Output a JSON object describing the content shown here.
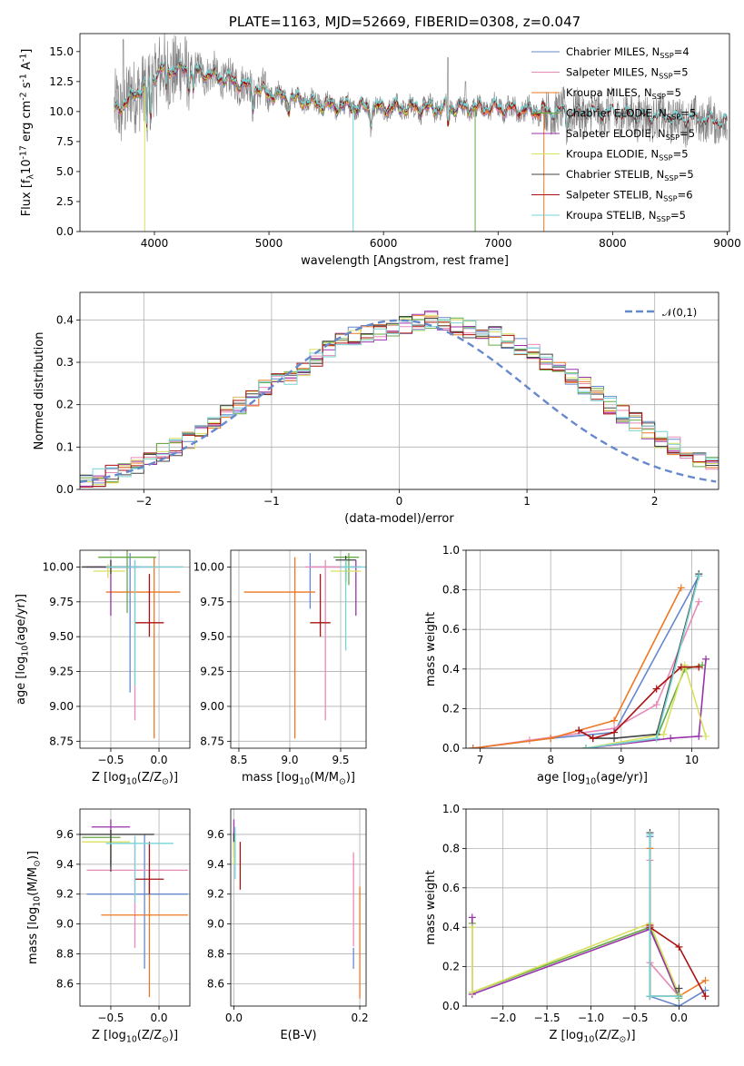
{
  "chart_data": [
    {
      "type": "line",
      "title": "PLATE=1163, MJD=52669, FIBERID=0308, z=0.047",
      "xlabel": "wavelength [Angstrom, rest frame]",
      "ylabel": "Flux [f$_\\lambda$10$^{-17}$ erg cm$^{-2}$ s$^{-1}$ A$^{-1}$]",
      "xlim": [
        3350,
        9020
      ],
      "ylim": [
        0,
        16.5
      ],
      "xticks": [
        "4000",
        "5000",
        "6000",
        "7000",
        "8000",
        "9000"
      ],
      "yticks": [
        "0.0",
        "2.5",
        "5.0",
        "7.5",
        "10.0",
        "12.5",
        "15.0"
      ],
      "grid": false,
      "legend": "top-right",
      "series": [
        {
          "name": "Chabrier MILES, N$_{SSP}$=4",
          "color": "#6688cc",
          "wl_range": [
            3650,
            7400
          ]
        },
        {
          "name": "Salpeter MILES, N$_{SSP}$=5",
          "color": "#e88ab8",
          "wl_range": [
            3650,
            7400
          ]
        },
        {
          "name": "Kroupa MILES, N$_{SSP}$=5",
          "color": "#ee7722",
          "wl_range": [
            3650,
            7400
          ]
        },
        {
          "name": "Chabrier ELODIE, N$_{SSP}$=5",
          "color": "#66aa44",
          "wl_range": [
            3650,
            6800
          ]
        },
        {
          "name": "Salpeter ELODIE, N$_{SSP}$=5",
          "color": "#9933aa",
          "wl_range": [
            3650,
            6800
          ]
        },
        {
          "name": "Kroupa ELODIE, N$_{SSP}$=5",
          "color": "#d8e060",
          "wl_range": [
            3650,
            6800
          ]
        },
        {
          "name": "Chabrier STELIB, N$_{SSP}$=5",
          "color": "#444444",
          "wl_range": [
            3650,
            9000
          ]
        },
        {
          "name": "Salpeter STELIB, N$_{SSP}$=6",
          "color": "#aa1111",
          "wl_range": [
            3650,
            9000
          ]
        },
        {
          "name": "Kroupa STELIB, N$_{SSP}$=5",
          "color": "#77d4d4",
          "wl_range": [
            3650,
            9000
          ]
        }
      ],
      "data_color": "#808080",
      "continuum": {
        "wavelength": [
          3650,
          3900,
          4050,
          4300,
          4600,
          5000,
          5500,
          6000,
          6500,
          7000,
          7500,
          8000,
          8500,
          9000
        ],
        "flux": [
          10.0,
          12.0,
          13.5,
          13.5,
          12.8,
          11.5,
          10.5,
          10.3,
          10.3,
          10.3,
          9.9,
          9.8,
          9.4,
          9.1
        ]
      }
    },
    {
      "type": "bar",
      "xlabel": "(data-model)/error",
      "ylabel": "Normed distribution",
      "xlim": [
        -2.5,
        2.5
      ],
      "ylim": [
        0,
        0.465
      ],
      "xticks": [
        "−2",
        "−1",
        "0",
        "1",
        "2"
      ],
      "yticks": [
        "0.0",
        "0.1",
        "0.2",
        "0.3",
        "0.4"
      ],
      "grid": true,
      "legend": "top-right",
      "reference": {
        "name": "$\\mathcal{N}(0,1)$",
        "color": "#6688cc",
        "mean": 0,
        "sigma": 1
      },
      "bin_width": 0.1,
      "envelope": [
        0.026,
        0.029,
        0.037,
        0.05,
        0.06,
        0.072,
        0.088,
        0.1,
        0.118,
        0.14,
        0.165,
        0.185,
        0.2,
        0.215,
        0.236,
        0.252,
        0.27,
        0.29,
        0.312,
        0.33,
        0.35,
        0.362,
        0.37,
        0.372,
        0.375,
        0.39,
        0.395,
        0.4,
        0.39,
        0.385,
        0.38,
        0.37,
        0.362,
        0.352,
        0.335,
        0.32,
        0.302,
        0.285,
        0.265,
        0.245,
        0.222,
        0.2,
        0.178,
        0.16,
        0.14,
        0.12,
        0.104,
        0.09,
        0.074,
        0.06
      ]
    },
    {
      "type": "scatter",
      "xlabel": "Z [log$_{10}$($Z/Z_\\odot$)]",
      "ylabel": "age  [log$_{10}$($age/yr$)]",
      "xlim": [
        -0.82,
        0.32
      ],
      "ylim": [
        8.7,
        10.12
      ],
      "xticks": [
        "−0.5",
        "0.0"
      ],
      "yticks": [
        "8.75",
        "9.00",
        "9.25",
        "9.50",
        "9.75",
        "10.00"
      ],
      "grid": true,
      "points": [
        {
          "color": "#6688cc",
          "x": -0.3,
          "y": 10.0,
          "xerr": [
            0.5,
            0.28
          ],
          "yerr": [
            0.9,
            0.1
          ]
        },
        {
          "color": "#e88ab8",
          "x": -0.25,
          "y": 10.0,
          "xerr": [
            0.45,
            0.5
          ],
          "yerr": [
            1.1,
            0.05
          ]
        },
        {
          "color": "#ee7722",
          "x": -0.05,
          "y": 9.82,
          "xerr": [
            0.5,
            0.27
          ],
          "yerr": [
            1.05,
            0.25
          ]
        },
        {
          "color": "#66aa44",
          "x": -0.33,
          "y": 10.07,
          "xerr": [
            0.3,
            0.3
          ],
          "yerr": [
            0.4,
            0.05
          ]
        },
        {
          "color": "#9933aa",
          "x": -0.5,
          "y": 10.0,
          "xerr": [
            0.25,
            0.3
          ],
          "yerr": [
            0.35,
            0.05
          ]
        },
        {
          "color": "#d8e060",
          "x": -0.53,
          "y": 9.97,
          "xerr": [
            0.15,
            0.18
          ],
          "yerr": [
            0.05,
            0.05
          ]
        },
        {
          "color": "#444444",
          "x": -0.5,
          "y": 10.0,
          "xerr": [
            0.3,
            0.2
          ],
          "yerr": [
            0.05,
            0.05
          ]
        },
        {
          "color": "#aa1111",
          "x": -0.1,
          "y": 9.6,
          "xerr": [
            0.15,
            0.15
          ],
          "yerr": [
            0.1,
            0.35
          ]
        },
        {
          "color": "#77d4d4",
          "x": -0.25,
          "y": 10.0,
          "xerr": [
            0.3,
            0.5
          ],
          "yerr": [
            0.85,
            0.05
          ]
        }
      ]
    },
    {
      "type": "scatter",
      "xlabel": "mass [log$_{10}$($M/M_\\odot$)]",
      "xlim": [
        8.42,
        9.75
      ],
      "ylim": [
        8.7,
        10.12
      ],
      "xticks": [
        "8.5",
        "9.0",
        "9.5"
      ],
      "yticks": [
        "8.75",
        "9.00",
        "9.25",
        "9.50",
        "9.75",
        "10.00"
      ],
      "grid": true,
      "points": [
        {
          "color": "#6688cc",
          "x": 9.2,
          "y": 10.0,
          "xerr": [
            0.0,
            0.45
          ],
          "yerr": [
            0.3,
            0.1
          ]
        },
        {
          "color": "#e88ab8",
          "x": 9.35,
          "y": 10.0,
          "xerr": [
            0.2,
            0.2
          ],
          "yerr": [
            1.1,
            0.05
          ]
        },
        {
          "color": "#ee7722",
          "x": 9.05,
          "y": 9.82,
          "xerr": [
            0.5,
            0.2
          ],
          "yerr": [
            1.05,
            0.25
          ]
        },
        {
          "color": "#66aa44",
          "x": 9.58,
          "y": 10.07,
          "xerr": [
            0.15,
            0.1
          ],
          "yerr": [
            0.2,
            0.03
          ]
        },
        {
          "color": "#9933aa",
          "x": 9.65,
          "y": 10.0,
          "xerr": [
            0.05,
            0.05
          ],
          "yerr": [
            0.35,
            0.05
          ]
        },
        {
          "color": "#d8e060",
          "x": 9.55,
          "y": 9.97,
          "xerr": [
            0.15,
            0.15
          ],
          "yerr": [
            0.1,
            0.05
          ]
        },
        {
          "color": "#444444",
          "x": 9.55,
          "y": 10.05,
          "xerr": [
            0.1,
            0.1
          ],
          "yerr": [
            0.15,
            0.03
          ]
        },
        {
          "color": "#aa1111",
          "x": 9.3,
          "y": 9.6,
          "xerr": [
            0.1,
            0.1
          ],
          "yerr": [
            0.1,
            0.35
          ]
        },
        {
          "color": "#77d4d4",
          "x": 9.55,
          "y": 10.0,
          "xerr": [
            0.05,
            0.2
          ],
          "yerr": [
            0.6,
            0.05
          ]
        }
      ]
    },
    {
      "type": "line",
      "xlabel": "age  [log$_{10}$($age/yr$)]",
      "ylabel": "mass weight",
      "xlim": [
        6.8,
        10.38
      ],
      "ylim": [
        0,
        1.0
      ],
      "xticks": [
        "7",
        "8",
        "9",
        "10"
      ],
      "yticks": [
        "0.0",
        "0.2",
        "0.4",
        "0.6",
        "0.8",
        "1.0"
      ],
      "grid": true,
      "series": [
        {
          "color": "#6688cc",
          "x": [
            6.9,
            8.0,
            8.9,
            10.1
          ],
          "y": [
            0.0,
            0.05,
            0.08,
            0.87
          ]
        },
        {
          "color": "#e88ab8",
          "x": [
            6.9,
            7.7,
            8.9,
            9.5,
            10.1
          ],
          "y": [
            0.0,
            0.04,
            0.1,
            0.22,
            0.74
          ]
        },
        {
          "color": "#ee7722",
          "x": [
            6.9,
            8.0,
            8.9,
            9.85
          ],
          "y": [
            0.0,
            0.05,
            0.14,
            0.81
          ]
        },
        {
          "color": "#66aa44",
          "x": [
            8.5,
            9.5,
            9.9,
            10.15
          ],
          "y": [
            0.0,
            0.05,
            0.4,
            0.42
          ]
        },
        {
          "color": "#9933aa",
          "x": [
            8.5,
            9.7,
            10.1,
            10.2
          ],
          "y": [
            0.0,
            0.05,
            0.06,
            0.45
          ]
        },
        {
          "color": "#d8e060",
          "x": [
            8.5,
            9.6,
            9.9,
            10.2
          ],
          "y": [
            0.0,
            0.07,
            0.42,
            0.06
          ]
        },
        {
          "color": "#444444",
          "x": [
            8.4,
            8.6,
            8.9,
            9.5,
            10.1
          ],
          "y": [
            0.09,
            0.05,
            0.05,
            0.07,
            0.88
          ]
        },
        {
          "color": "#aa1111",
          "x": [
            8.4,
            8.6,
            8.9,
            9.5,
            9.85,
            10.1
          ],
          "y": [
            0.09,
            0.05,
            0.08,
            0.3,
            0.41,
            0.41
          ]
        },
        {
          "color": "#77d4d4",
          "x": [
            8.5,
            9.5,
            10.1
          ],
          "y": [
            0.0,
            0.05,
            0.87
          ]
        }
      ]
    },
    {
      "type": "scatter",
      "xlabel": "Z [log$_{10}$($Z/Z_\\odot$)]",
      "ylabel": "mass [log$_{10}$($M/M_\\odot$)]",
      "xlim": [
        -0.82,
        0.32
      ],
      "ylim": [
        8.45,
        9.77
      ],
      "xticks": [
        "−0.5",
        "0.0"
      ],
      "yticks": [
        "8.6",
        "8.8",
        "9.0",
        "9.2",
        "9.4",
        "9.6"
      ],
      "grid": true,
      "points": [
        {
          "color": "#6688cc",
          "x": -0.15,
          "y": 9.2,
          "xerr": [
            0.6,
            0.45
          ],
          "yerr": [
            0.5,
            0.4
          ]
        },
        {
          "color": "#e88ab8",
          "x": -0.25,
          "y": 9.36,
          "xerr": [
            0.5,
            0.55
          ],
          "yerr": [
            0.52,
            0.2
          ]
        },
        {
          "color": "#ee7722",
          "x": -0.1,
          "y": 9.06,
          "xerr": [
            0.5,
            0.4
          ],
          "yerr": [
            0.55,
            0.3
          ]
        },
        {
          "color": "#66aa44",
          "x": -0.5,
          "y": 9.58,
          "xerr": [
            0.3,
            0.1
          ],
          "yerr": [
            0.2,
            0.05
          ]
        },
        {
          "color": "#9933aa",
          "x": -0.5,
          "y": 9.65,
          "xerr": [
            0.2,
            0.2
          ],
          "yerr": [
            0.25,
            0.05
          ]
        },
        {
          "color": "#d8e060",
          "x": -0.5,
          "y": 9.55,
          "xerr": [
            0.3,
            0.2
          ],
          "yerr": [
            0.1,
            0.05
          ]
        },
        {
          "color": "#444444",
          "x": -0.5,
          "y": 9.6,
          "xerr": [
            0.4,
            0.45
          ],
          "yerr": [
            0.25,
            0.03
          ]
        },
        {
          "color": "#aa1111",
          "x": -0.1,
          "y": 9.3,
          "xerr": [
            0.15,
            0.15
          ],
          "yerr": [
            0.1,
            0.25
          ]
        },
        {
          "color": "#77d4d4",
          "x": -0.25,
          "y": 9.54,
          "xerr": [
            0.3,
            0.4
          ],
          "yerr": [
            0.4,
            0.05
          ]
        }
      ]
    },
    {
      "type": "scatter",
      "xlabel": "E(B-V)",
      "xlim": [
        -0.005,
        0.21
      ],
      "ylim": [
        8.45,
        9.77
      ],
      "xticks": [
        "0.0",
        "0.2"
      ],
      "yticks": [
        "8.6",
        "8.8",
        "9.0",
        "9.2",
        "9.4",
        "9.6"
      ],
      "grid": true,
      "points": [
        {
          "color": "#6688cc",
          "x": 0.19,
          "y": 8.78,
          "yerr": [
            0.08,
            0.06
          ]
        },
        {
          "color": "#e88ab8",
          "x": 0.19,
          "y": 9.3,
          "yerr": [
            0.45,
            0.18
          ]
        },
        {
          "color": "#ee7722",
          "x": 0.2,
          "y": 8.9,
          "yerr": [
            0.4,
            0.35
          ]
        },
        {
          "color": "#66aa44",
          "x": 0.0,
          "y": 9.55,
          "yerr": [
            0.05,
            0.05
          ]
        },
        {
          "color": "#9933aa",
          "x": 0.0,
          "y": 9.6,
          "yerr": [
            0.15,
            0.1
          ]
        },
        {
          "color": "#d8e060",
          "x": 0.0,
          "y": 9.5,
          "yerr": [
            0.1,
            0.05
          ]
        },
        {
          "color": "#444444",
          "x": 0.0,
          "y": 9.58,
          "yerr": [
            0.03,
            0.03
          ]
        },
        {
          "color": "#aa1111",
          "x": 0.01,
          "y": 9.35,
          "yerr": [
            0.12,
            0.2
          ]
        },
        {
          "color": "#77d4d4",
          "x": 0.002,
          "y": 9.5,
          "yerr": [
            0.2,
            0.15
          ]
        }
      ]
    },
    {
      "type": "line",
      "xlabel": "Z [log$_{10}$($Z/Z_\\odot$)]",
      "ylabel": "mass weight",
      "xlim": [
        -2.42,
        0.45
      ],
      "ylim": [
        0,
        1.0
      ],
      "xticks": [
        "−2.0",
        "−1.5",
        "−1.0",
        "−0.5",
        "0.0"
      ],
      "yticks": [
        "0.0",
        "0.2",
        "0.4",
        "0.6",
        "0.8",
        "1.0"
      ],
      "grid": true,
      "series": [
        {
          "color": "#6688cc",
          "x": [
            -0.33,
            -0.33,
            0.0,
            0.3
          ],
          "y": [
            0.86,
            0.05,
            0.0,
            0.08
          ]
        },
        {
          "color": "#e88ab8",
          "x": [
            -0.33,
            -0.33,
            0.0
          ],
          "y": [
            0.74,
            0.22,
            0.05
          ]
        },
        {
          "color": "#ee7722",
          "x": [
            -0.33,
            -0.33,
            0.0,
            0.3
          ],
          "y": [
            0.8,
            0.05,
            0.05,
            0.13
          ]
        },
        {
          "color": "#66aa44",
          "x": [
            -2.35,
            -2.35,
            -0.33,
            0.0
          ],
          "y": [
            0.42,
            0.07,
            0.4,
            0.04
          ]
        },
        {
          "color": "#9933aa",
          "x": [
            -2.35,
            -2.35,
            -0.33,
            0.0
          ],
          "y": [
            0.45,
            0.06,
            0.39,
            0.05
          ]
        },
        {
          "color": "#d8e060",
          "x": [
            -2.35,
            -2.35,
            -0.33,
            0.0
          ],
          "y": [
            0.4,
            0.07,
            0.42,
            0.06
          ]
        },
        {
          "color": "#444444",
          "x": [
            -0.33,
            -0.33,
            0.0,
            0.0
          ],
          "y": [
            0.88,
            0.05,
            0.05,
            0.09
          ]
        },
        {
          "color": "#aa1111",
          "x": [
            -0.33,
            -0.33,
            0.0,
            0.3
          ],
          "y": [
            0.41,
            0.4,
            0.3,
            0.05
          ]
        },
        {
          "color": "#77d4d4",
          "x": [
            -0.33,
            -0.33,
            0.0
          ],
          "y": [
            0.87,
            0.05,
            0.05
          ]
        }
      ]
    }
  ]
}
